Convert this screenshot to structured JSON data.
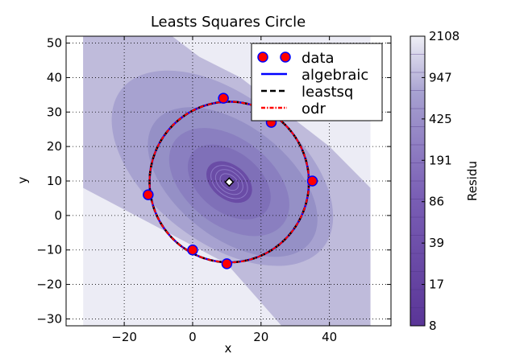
{
  "chart_data": {
    "type": "scatter",
    "title": "Leasts Squares Circle",
    "xlabel": "x",
    "ylabel": "y",
    "xlim": [
      -37,
      58
    ],
    "ylim": [
      -32,
      52
    ],
    "xticks": [
      -20,
      0,
      20,
      40
    ],
    "yticks": [
      -30,
      -20,
      -10,
      0,
      10,
      20,
      30,
      40,
      50
    ],
    "x_tick_labels": [
      "−20",
      "0",
      "20",
      "40"
    ],
    "y_tick_labels": [
      "−30",
      "−20",
      "−10",
      "0",
      "10",
      "20",
      "30",
      "40",
      "50"
    ],
    "grid": true,
    "legend_position": "top-right",
    "data_points": [
      {
        "x": 9,
        "y": 34
      },
      {
        "x": 23,
        "y": 27
      },
      {
        "x": 35,
        "y": 10
      },
      {
        "x": 10,
        "y": -14
      },
      {
        "x": 0,
        "y": -10
      },
      {
        "x": -13,
        "y": 6
      }
    ],
    "center": {
      "x": 10.7,
      "y": 9.7
    },
    "circle_radius": 23.3,
    "series": [
      {
        "name": "data",
        "color": "#ff0000",
        "edge_color": "#0000ff",
        "marker": "circle"
      },
      {
        "name": "algebraic",
        "color": "#0000ff",
        "style": "solid"
      },
      {
        "name": "leastsq",
        "color": "#000000",
        "style": "dashed"
      },
      {
        "name": "odr",
        "color": "#ff0000",
        "style": "dashdot"
      }
    ],
    "colorbar": {
      "label": "Residu",
      "tick_labels": [
        "8",
        "17",
        "39",
        "86",
        "191",
        "425",
        "947",
        "2108"
      ],
      "bands": 16
    },
    "contour_region": {
      "x_from": -32,
      "x_to": 52
    },
    "colors": {
      "fill_light": "#ececf5",
      "fill_1": "#bfbbdb",
      "fill_2": "#a7a2d0",
      "fill_3": "#9590c6",
      "fill_4": "#8a7fc0",
      "fill_5": "#7f70b8",
      "fill_dark": "#6a4ca6"
    }
  }
}
